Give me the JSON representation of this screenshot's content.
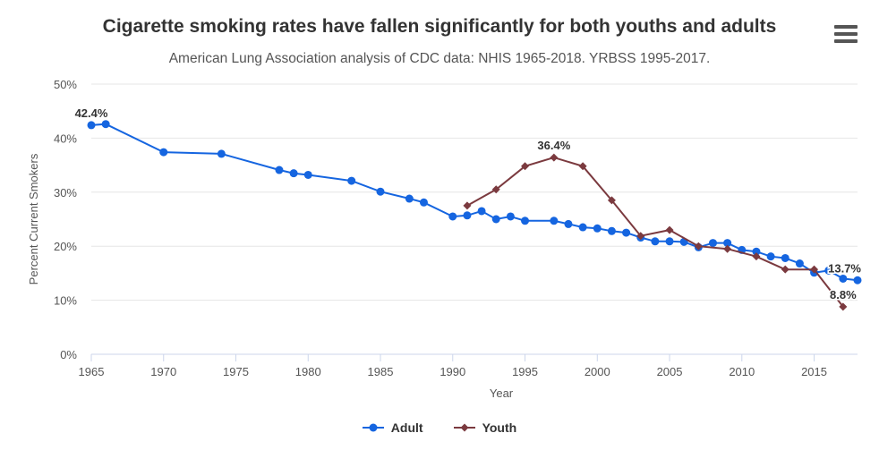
{
  "menu": {
    "icon": "hamburger-menu-icon"
  },
  "colors": {
    "adult": "#1565e0",
    "youth": "#7b3a3f",
    "grid": "#e6e6e6",
    "axis_text": "#555555"
  },
  "chart_data": {
    "type": "line",
    "title": "Cigarette smoking rates have fallen significantly for both youths and adults",
    "subtitle": "American Lung Association analysis of CDC data: NHIS 1965-2018. YRBSS 1995-2017.",
    "xlabel": "Year",
    "ylabel": "Percent Current Smokers",
    "xlim": [
      1965,
      2018
    ],
    "ylim": [
      0,
      50
    ],
    "x_ticks": [
      1965,
      1970,
      1975,
      1980,
      1985,
      1990,
      1995,
      2000,
      2005,
      2010,
      2015
    ],
    "y_ticks": [
      "0%",
      "10%",
      "20%",
      "30%",
      "40%",
      "50%"
    ],
    "grid": true,
    "legend": "bottom-center",
    "series": [
      {
        "name": "Adult",
        "marker": "circle",
        "points": [
          [
            1965,
            42.4
          ],
          [
            1966,
            42.6
          ],
          [
            1970,
            37.4
          ],
          [
            1974,
            37.1
          ],
          [
            1978,
            34.1
          ],
          [
            1979,
            33.5
          ],
          [
            1980,
            33.2
          ],
          [
            1983,
            32.1
          ],
          [
            1985,
            30.1
          ],
          [
            1987,
            28.8
          ],
          [
            1988,
            28.1
          ],
          [
            1990,
            25.5
          ],
          [
            1991,
            25.7
          ],
          [
            1992,
            26.5
          ],
          [
            1993,
            25.0
          ],
          [
            1994,
            25.5
          ],
          [
            1995,
            24.7
          ],
          [
            1997,
            24.7
          ],
          [
            1998,
            24.1
          ],
          [
            1999,
            23.5
          ],
          [
            2000,
            23.3
          ],
          [
            2001,
            22.8
          ],
          [
            2002,
            22.5
          ],
          [
            2003,
            21.6
          ],
          [
            2004,
            20.9
          ],
          [
            2005,
            20.9
          ],
          [
            2006,
            20.8
          ],
          [
            2007,
            19.8
          ],
          [
            2008,
            20.6
          ],
          [
            2009,
            20.6
          ],
          [
            2010,
            19.3
          ],
          [
            2011,
            19.0
          ],
          [
            2012,
            18.1
          ],
          [
            2013,
            17.8
          ],
          [
            2014,
            16.8
          ],
          [
            2015,
            15.1
          ],
          [
            2016,
            15.5
          ],
          [
            2017,
            14.0
          ],
          [
            2018,
            13.7
          ]
        ],
        "labels": [
          {
            "x": 1965,
            "text": "42.4%"
          },
          {
            "x": 2018,
            "text": "13.7%"
          }
        ]
      },
      {
        "name": "Youth",
        "marker": "diamond",
        "points": [
          [
            1991,
            27.5
          ],
          [
            1993,
            30.5
          ],
          [
            1995,
            34.8
          ],
          [
            1997,
            36.4
          ],
          [
            1999,
            34.8
          ],
          [
            2001,
            28.5
          ],
          [
            2003,
            21.9
          ],
          [
            2005,
            23.0
          ],
          [
            2007,
            20.0
          ],
          [
            2009,
            19.5
          ],
          [
            2011,
            18.1
          ],
          [
            2013,
            15.7
          ],
          [
            2015,
            15.7
          ],
          [
            2017,
            8.8
          ]
        ],
        "labels": [
          {
            "x": 1997,
            "text": "36.4%"
          },
          {
            "x": 2017,
            "text": "8.8%"
          }
        ]
      }
    ]
  }
}
